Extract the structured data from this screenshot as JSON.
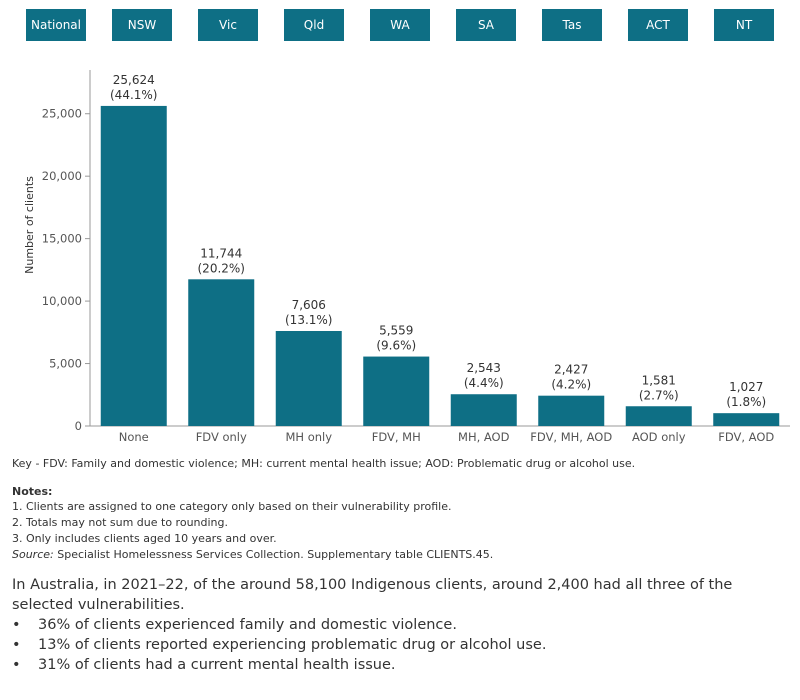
{
  "tabs": [
    "National",
    "NSW",
    "Vic",
    "Qld",
    "WA",
    "SA",
    "Tas",
    "ACT",
    "NT"
  ],
  "colors": {
    "bar": "#0e6f85",
    "tab": "#0e6f85",
    "axis": "#999999"
  },
  "chart_data": {
    "type": "bar",
    "categories": [
      "None",
      "FDV only",
      "MH only",
      "FDV, MH",
      "MH, AOD",
      "FDV, MH, AOD",
      "AOD only",
      "FDV, AOD"
    ],
    "values": [
      25624,
      11744,
      7606,
      5559,
      2543,
      2427,
      1581,
      1027
    ],
    "value_labels": [
      "25,624",
      "11,744",
      "7,606",
      "5,559",
      "2,543",
      "2,427",
      "1,581",
      "1,027"
    ],
    "percent_labels": [
      "(44.1%)",
      "(20.2%)",
      "(13.1%)",
      "(9.6%)",
      "(4.4%)",
      "(4.2%)",
      "(2.7%)",
      "(1.8%)"
    ],
    "ylabel": "Number of clients",
    "yticks": [
      0,
      5000,
      10000,
      15000,
      20000,
      25000
    ],
    "ytick_labels": [
      "0",
      "5,000",
      "10,000",
      "15,000",
      "20,000",
      "25,000"
    ],
    "ylim": [
      0,
      28500
    ],
    "grid": false
  },
  "key": "Key - FDV: Family and domestic violence; MH: current mental health issue; AOD: Problematic drug or alcohol use.",
  "notes": {
    "title": "Notes:",
    "items": [
      "1. Clients are assigned to one category only based on their vulnerability profile.",
      "2. Totals may not sum due to rounding.",
      "3. Only includes clients aged 10 years and over."
    ],
    "source_label": "Source:",
    "source_text": " Specialist Homelessness Services Collection. Supplementary table CLIENTS.45."
  },
  "summary": {
    "intro": "In Australia, in 2021–22, of the around 58,100 Indigenous clients, around 2,400 had all three of the selected vulnerabilities.",
    "bullet_char": "•",
    "bullets": [
      "36% of clients experienced family and domestic violence.",
      "13% of clients reported experiencing problematic drug or alcohol use.",
      "31% of clients had a current mental health issue."
    ]
  }
}
